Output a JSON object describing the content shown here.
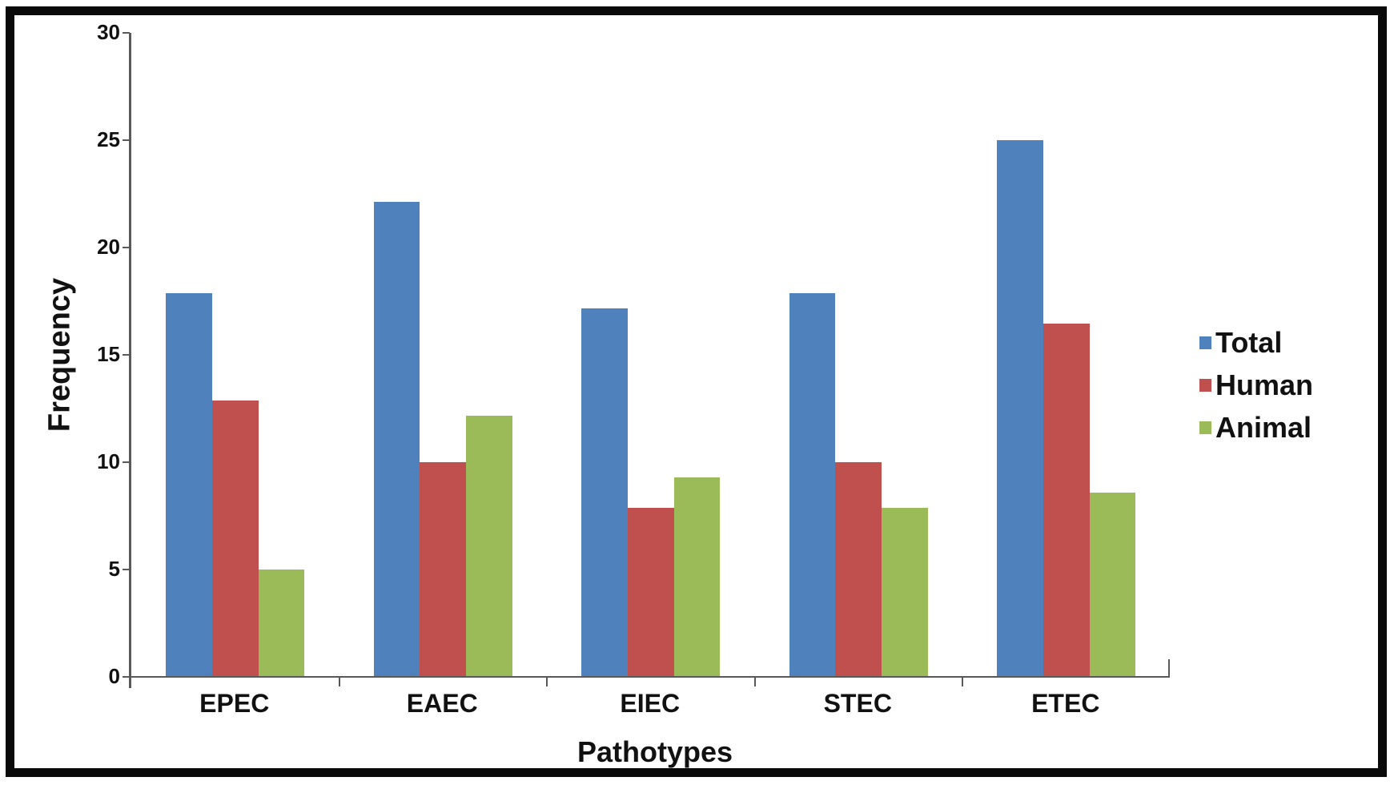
{
  "figure": {
    "background": "#ffffff",
    "frame_color": "#0a0a0a",
    "axis_color": "#595959",
    "text_color": "#111111"
  },
  "chart_data": {
    "type": "bar",
    "title": "",
    "xlabel": "Pathotypes",
    "ylabel": "Frequency",
    "categories": [
      "EPEC",
      "EAEC",
      "EIEC",
      "STEC",
      "ETEC"
    ],
    "series": [
      {
        "name": "Total",
        "color": "#4F81BD",
        "values": [
          17.86,
          22.14,
          17.14,
          17.86,
          25.0
        ]
      },
      {
        "name": "Human",
        "color": "#C0504D",
        "values": [
          12.86,
          10.0,
          7.86,
          10.0,
          16.43
        ]
      },
      {
        "name": "Animal",
        "color": "#9BBB59",
        "values": [
          5.0,
          12.14,
          9.29,
          7.86,
          8.57
        ]
      }
    ],
    "ylim": [
      0,
      30
    ],
    "yticks": [
      0,
      5,
      10,
      15,
      20,
      25,
      30
    ],
    "grid": false,
    "legend_position": "right"
  }
}
